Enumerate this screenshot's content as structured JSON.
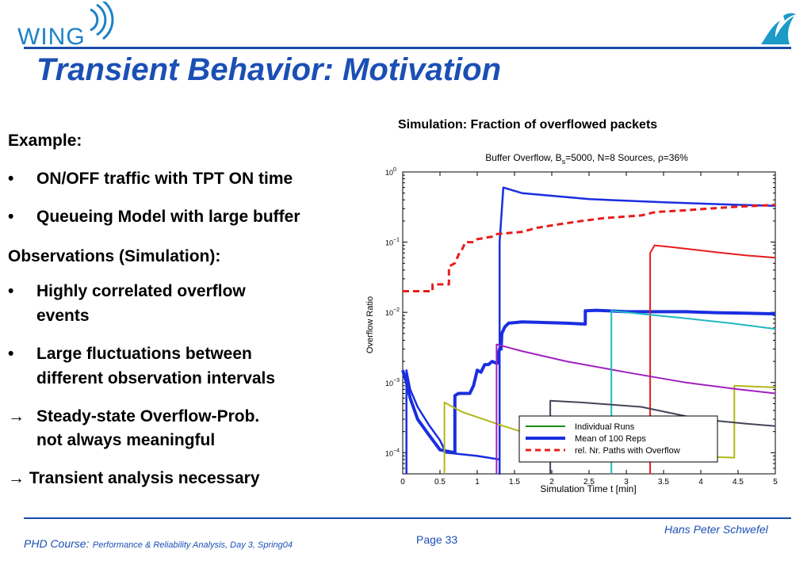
{
  "header": {
    "logo_text": "WING",
    "title": "Transient Behavior: Motivation"
  },
  "content": {
    "example_heading": "Example:",
    "example_items": [
      "ON/OFF traffic with TPT ON time",
      "Queueing Model with large buffer"
    ],
    "observations_heading": "Observations (Simulation):",
    "observation_items": [
      {
        "line1": "Highly correlated overflow",
        "line2": "events"
      },
      {
        "line1": "Large fluctuations between",
        "line2": "different observation intervals"
      }
    ],
    "conclusion_1": {
      "line1": "Steady-state Overflow-Prob.",
      "line2": "not always meaningful"
    },
    "conclusion_2": "Transient analysis necessary",
    "bullet_glyph": "•",
    "arrow_glyph": "→"
  },
  "chart_caption": "Simulation: Fraction of  overflowed packets",
  "chart_data": {
    "type": "line",
    "title": "Buffer Overflow, B =5000, N=8 Sources, ρ=36%",
    "title_subscript": "s",
    "xlabel": "Simulation Time t [min]",
    "ylabel": "Overflow Ratio",
    "xlim": [
      0,
      5
    ],
    "ylim": [
      5e-05,
      1
    ],
    "yscale": "log",
    "xticks": [
      "0",
      "0.5",
      "1",
      "1.5",
      "2",
      "2.5",
      "3",
      "3.5",
      "4",
      "4.5",
      "5"
    ],
    "yticks": [
      {
        "base": "10",
        "exp": "0",
        "value": 1
      },
      {
        "base": "10",
        "exp": "−1",
        "value": 0.1
      },
      {
        "base": "10",
        "exp": "−2",
        "value": 0.01
      },
      {
        "base": "10",
        "exp": "−3",
        "value": 0.001
      },
      {
        "base": "10",
        "exp": "−4",
        "value": 0.0001
      }
    ],
    "grid": false,
    "legend_position": "bottom-right",
    "legend": [
      {
        "label": "Individual Runs",
        "color": "#1a8a1a",
        "style": "solid"
      },
      {
        "label": "Mean of 100 Reps",
        "color": "#1a2ee0",
        "style": "thick"
      },
      {
        "label": "rel. Nr. Paths with Overflow",
        "color": "#e81c1c",
        "style": "dashed"
      }
    ],
    "series": [
      {
        "color": "#1a2ee0",
        "width": 2.5,
        "dash": "",
        "points": [
          [
            0.05,
            5e-05
          ],
          [
            0.05,
            0.0015
          ],
          [
            0.1,
            0.0008
          ],
          [
            0.2,
            0.00045
          ],
          [
            0.35,
            0.00025
          ],
          [
            0.5,
            0.00015
          ],
          [
            0.58,
            0.0001
          ],
          [
            1.0,
            9e-05
          ],
          [
            1.3,
            8e-05
          ],
          [
            1.3,
            5e-05
          ],
          [
            1.3,
            0.1
          ],
          [
            1.35,
            0.6
          ],
          [
            1.6,
            0.5
          ],
          [
            2.5,
            0.41
          ],
          [
            3.5,
            0.37
          ],
          [
            4.5,
            0.34
          ],
          [
            5,
            0.33
          ]
        ]
      },
      {
        "color": "#1a2ee0",
        "width": 4,
        "dash": "",
        "points": [
          [
            0,
            0.0015
          ],
          [
            0.05,
            0.001
          ],
          [
            0.1,
            0.0006
          ],
          [
            0.2,
            0.0003
          ],
          [
            0.35,
            0.00018
          ],
          [
            0.5,
            0.00011
          ],
          [
            0.7,
            0.0001
          ],
          [
            0.7,
            0.00065
          ],
          [
            0.75,
            0.0007
          ],
          [
            0.9,
            0.0007
          ],
          [
            0.95,
            0.0009
          ],
          [
            1.0,
            0.0015
          ],
          [
            1.05,
            0.0014
          ],
          [
            1.1,
            0.0018
          ],
          [
            1.15,
            0.0018
          ],
          [
            1.2,
            0.002
          ],
          [
            1.25,
            0.0019
          ],
          [
            1.28,
            0.0019
          ],
          [
            1.28,
            0.0025
          ],
          [
            1.3,
            0.003
          ],
          [
            1.32,
            0.003
          ],
          [
            1.33,
            0.005
          ],
          [
            1.37,
            0.0062
          ],
          [
            1.42,
            0.007
          ],
          [
            1.6,
            0.0073
          ],
          [
            1.8,
            0.0072
          ],
          [
            2.2,
            0.007
          ],
          [
            2.45,
            0.0068
          ],
          [
            2.45,
            0.0105
          ],
          [
            2.6,
            0.0107
          ],
          [
            3.0,
            0.0102
          ],
          [
            3.5,
            0.0102
          ],
          [
            3.8,
            0.0102
          ],
          [
            4.2,
            0.0099
          ],
          [
            4.6,
            0.0097
          ],
          [
            5,
            0.0095
          ]
        ]
      },
      {
        "color": "#e81c1c",
        "width": 3,
        "dash": "8,5",
        "points": [
          [
            0,
            0.02
          ],
          [
            0.4,
            0.02
          ],
          [
            0.4,
            0.025
          ],
          [
            0.62,
            0.025
          ],
          [
            0.62,
            0.045
          ],
          [
            0.7,
            0.05
          ],
          [
            0.76,
            0.07
          ],
          [
            0.8,
            0.08
          ],
          [
            0.84,
            0.1
          ],
          [
            0.95,
            0.1
          ],
          [
            1.0,
            0.11
          ],
          [
            1.2,
            0.12
          ],
          [
            1.25,
            0.13
          ],
          [
            1.6,
            0.14
          ],
          [
            1.8,
            0.16
          ],
          [
            2.1,
            0.18
          ],
          [
            2.4,
            0.2
          ],
          [
            2.7,
            0.22
          ],
          [
            3.2,
            0.24
          ],
          [
            3.4,
            0.27
          ],
          [
            3.7,
            0.28
          ],
          [
            4.1,
            0.3
          ],
          [
            4.5,
            0.32
          ],
          [
            5,
            0.34
          ]
        ]
      },
      {
        "color": "#e81c1c",
        "width": 2,
        "dash": "",
        "points": [
          [
            3.32,
            5e-05
          ],
          [
            3.32,
            0.07
          ],
          [
            3.38,
            0.09
          ],
          [
            3.6,
            0.085
          ],
          [
            4.2,
            0.072
          ],
          [
            4.6,
            0.065
          ],
          [
            5,
            0.06
          ]
        ]
      },
      {
        "color": "#b0b81a",
        "width": 2,
        "dash": "",
        "points": [
          [
            0.56,
            5e-05
          ],
          [
            0.56,
            0.00052
          ],
          [
            0.8,
            0.00038
          ],
          [
            1.3,
            0.00025
          ],
          [
            1.8,
            0.00017
          ],
          [
            2.5,
            0.00013
          ],
          [
            3.4,
            0.0001
          ],
          [
            3.8,
            9e-05
          ],
          [
            4.45,
            8.5e-05
          ],
          [
            4.45,
            0.0009
          ],
          [
            5,
            0.00085
          ]
        ]
      },
      {
        "color": "#a020c0",
        "width": 2,
        "dash": "",
        "points": [
          [
            1.26,
            5e-05
          ],
          [
            1.26,
            0.0035
          ],
          [
            1.6,
            0.0028
          ],
          [
            2.2,
            0.002
          ],
          [
            3.0,
            0.0014
          ],
          [
            3.8,
            0.001
          ],
          [
            4.5,
            0.0008
          ],
          [
            5,
            0.0007
          ]
        ]
      },
      {
        "color": "#20b8c0",
        "width": 2,
        "dash": "",
        "points": [
          [
            2.8,
            5e-05
          ],
          [
            2.8,
            0.0105
          ],
          [
            3.2,
            0.0095
          ],
          [
            3.8,
            0.0082
          ],
          [
            4.4,
            0.007
          ],
          [
            5,
            0.0058
          ]
        ]
      },
      {
        "color": "#44445a",
        "width": 2,
        "dash": "",
        "points": [
          [
            1.98,
            5e-05
          ],
          [
            1.98,
            0.00055
          ],
          [
            2.4,
            0.00052
          ],
          [
            3.2,
            0.00045
          ],
          [
            4.0,
            0.0003
          ],
          [
            4.6,
            0.00026
          ],
          [
            5,
            0.00024
          ]
        ]
      }
    ]
  },
  "footer": {
    "author": "Hans Peter Schwefel",
    "course_label": "PHD Course:",
    "course_detail": "Performance & Reliability Analysis, Day 3, Spring04",
    "page": "Page 33"
  }
}
